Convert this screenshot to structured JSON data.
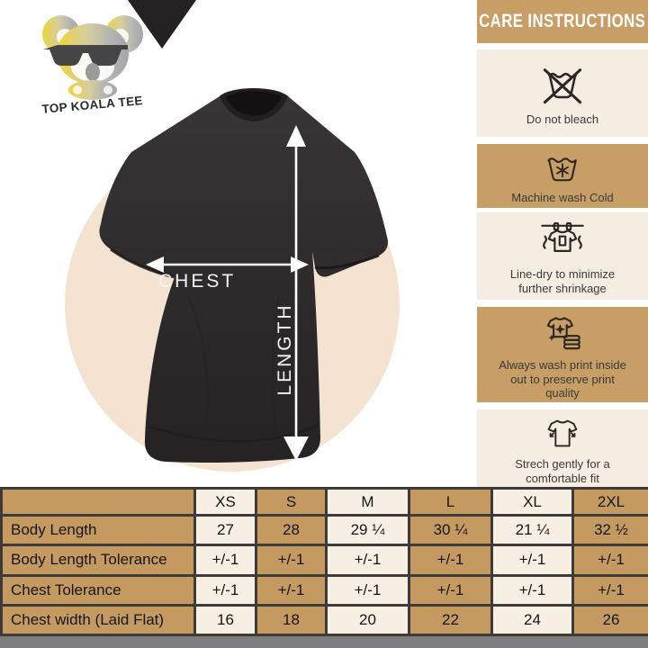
{
  "brand": {
    "logo_text": "TOP KOALA TEE"
  },
  "diagram": {
    "chest_label": "CHEST",
    "length_label": "LENGTH"
  },
  "care": {
    "title": "CARE INSTRUCTIONS",
    "items": [
      {
        "icon": "do-not-bleach-icon",
        "label": "Do not bleach"
      },
      {
        "icon": "machine-wash-cold-icon",
        "label": "Machine wash Cold"
      },
      {
        "icon": "line-dry-icon",
        "label": "Line-dry to minimize further shrinkage"
      },
      {
        "icon": "wash-inside-out-icon",
        "label": "Always wash print inside out to preserve print quality"
      },
      {
        "icon": "stretch-gently-icon",
        "label": "Strech gently for a comfortable fit"
      }
    ]
  },
  "size_table": {
    "columns": [
      "",
      "XS",
      "S",
      "M",
      "L",
      "XL",
      "2XL"
    ],
    "rows": [
      {
        "label": "Body Length",
        "values": [
          "27",
          "28",
          "29 ¼",
          "30 ¼",
          "21 ¼",
          "32 ½"
        ]
      },
      {
        "label": "Body Length Tolerance",
        "values": [
          "+/-1",
          "+/-1",
          "+/-1",
          "+/-1",
          "+/-1",
          "+/-1"
        ]
      },
      {
        "label": "Chest Tolerance",
        "values": [
          "+/-1",
          "+/-1",
          "+/-1",
          "+/-1",
          "+/-1",
          "+/-1"
        ]
      },
      {
        "label": "Chest width (Laid Flat)",
        "values": [
          "16",
          "18",
          "20",
          "22",
          "24",
          "26"
        ]
      }
    ]
  },
  "colors": {
    "sidebar_tan": "#C79E66",
    "sidebar_cream": "#F6EDE2",
    "table_tan": "#C49A61",
    "table_cream": "#F7EFE4",
    "circle_beige": "#F3E3D0",
    "shirt_dark": "#2E2B2C",
    "grid_border": "#3D3A37",
    "footer_gray": "#7D7D7D",
    "arrow_white": "#FFFFFF",
    "logo_yellow": "#EDD53A",
    "logo_gray": "#A6A6A6"
  }
}
